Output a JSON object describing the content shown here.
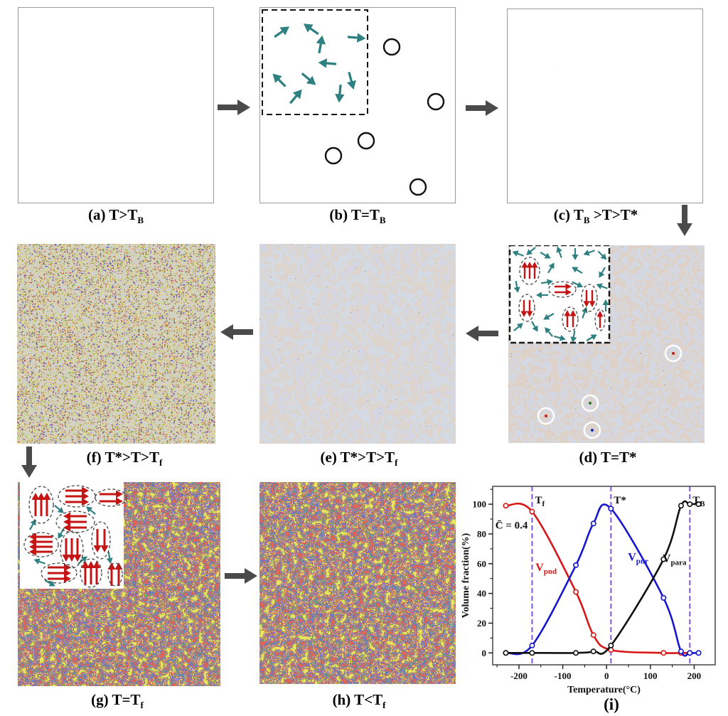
{
  "colors": {
    "flow_arrow": "#4a4a4a",
    "teal_arrow": "#2f8080",
    "red_arrow": "#c41414",
    "mosaic_red": "#c22117",
    "mosaic_blue": "#2126b2",
    "mosaic_yellow": "#d1c41c",
    "mosaic_green": "#33751f",
    "matrix_pink": "#b7a79b",
    "matrix_bluegray": "#a7afc4",
    "vline_purple": "#7e57e8"
  },
  "panels": {
    "a": {
      "caption": [
        {
          "t": "(a) T>T"
        },
        {
          "t": "B",
          "s": true
        }
      ]
    },
    "b": {
      "caption": [
        {
          "t": "(b) T=T"
        },
        {
          "t": "B",
          "s": true
        }
      ]
    },
    "c": {
      "caption": [
        {
          "t": "(c) T"
        },
        {
          "t": "B",
          "s": true
        },
        {
          "t": " >T>T*"
        }
      ]
    },
    "d": {
      "caption": [
        {
          "t": "(d) T=T*"
        }
      ]
    },
    "e": {
      "caption": [
        {
          "t": "(e) T*>T>T"
        },
        {
          "t": "f",
          "s": true
        }
      ]
    },
    "f": {
      "caption": [
        {
          "t": "(f) T*>T>T"
        },
        {
          "t": "f",
          "s": true
        }
      ]
    },
    "g": {
      "caption": [
        {
          "t": "(g) T=T"
        },
        {
          "t": "f",
          "s": true
        }
      ]
    },
    "h": {
      "caption": [
        {
          "t": "(h) T<T"
        },
        {
          "t": "f",
          "s": true
        }
      ]
    },
    "i": {
      "caption": [
        {
          "t": "(i)"
        }
      ]
    }
  },
  "chart_data": {
    "type": "line",
    "title": "",
    "xlabel": "Temperature(°C)",
    "ylabel": "Volume fraction(%)",
    "caption": "(i)",
    "grid": false,
    "xlim": [
      -260,
      248
    ],
    "ylim": [
      -8,
      112
    ],
    "xticks": [
      -200,
      -100,
      0,
      100,
      200
    ],
    "xminor": [
      -250,
      -150,
      -50,
      50,
      150
    ],
    "yticks": [
      0,
      20,
      40,
      60,
      80,
      100
    ],
    "yminor": [
      10,
      30,
      50,
      70,
      90,
      110
    ],
    "vline_color": "#7e57e8",
    "annotation": {
      "text": "C̄ = 0.4",
      "pos": [
        -254,
        86
      ]
    },
    "vlines": [
      {
        "x": -170,
        "label": [
          {
            "t": "T"
          },
          {
            "t": "f",
            "s": true
          }
        ]
      },
      {
        "x": 10,
        "label": [
          {
            "t": "T*"
          }
        ]
      },
      {
        "x": 190,
        "label": [
          {
            "t": "T"
          },
          {
            "t": "B",
            "s": true
          }
        ]
      }
    ],
    "series": [
      {
        "name": "V_pnd",
        "color": "#d91616",
        "label": [
          {
            "t": "V"
          },
          {
            "t": "pnd",
            "s": true
          }
        ],
        "label_pos": [
          -138,
          55
        ],
        "x": [
          -230,
          -170,
          -70,
          -30,
          10,
          130,
          170,
          190
        ],
        "y": [
          99,
          95,
          41,
          12,
          2,
          0,
          0,
          0
        ]
      },
      {
        "name": "V_pnr",
        "color": "#1616cf",
        "label": [
          {
            "t": "V"
          },
          {
            "t": "pnr",
            "s": true
          }
        ],
        "label_pos": [
          72,
          62
        ],
        "x": [
          -230,
          -170,
          -70,
          -30,
          10,
          130,
          170,
          190,
          210
        ],
        "y": [
          0,
          5,
          59,
          87,
          97,
          37,
          1,
          0,
          0
        ]
      },
      {
        "name": "V_para",
        "color": "#111111",
        "label": [
          {
            "t": "V"
          },
          {
            "t": "para",
            "s": true
          }
        ],
        "label_pos": [
          155,
          61
        ],
        "x": [
          -230,
          -170,
          -70,
          -30,
          10,
          130,
          170,
          190,
          210
        ],
        "y": [
          0,
          0,
          0,
          1,
          5,
          63,
          99,
          100,
          100
        ]
      }
    ]
  }
}
